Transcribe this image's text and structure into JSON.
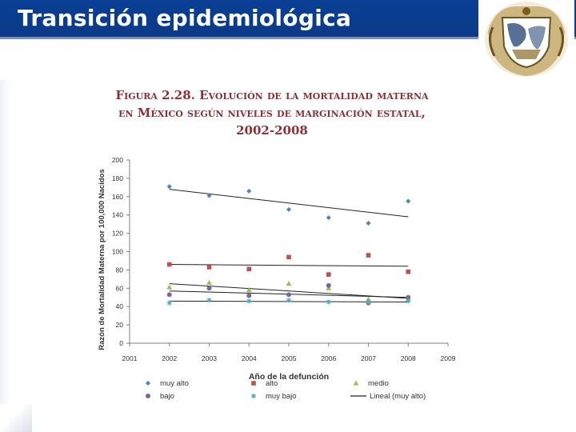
{
  "slide": {
    "title": "Transición epidemiológica",
    "figure_title": [
      "Figura 2.28. Evolución de la mortalidad materna",
      "en México según niveles de marginación estatal,",
      "2002-2008"
    ]
  },
  "chart_data": {
    "type": "scatter",
    "title": "Figura 2.28. Evolución de la mortalidad materna en México según niveles de marginación estatal, 2002-2008",
    "xlabel": "Año de la defunción",
    "ylabel": "Razón de Mortalidad Materna por 100,000 Nacidos",
    "xlim": [
      2001,
      2009
    ],
    "ylim": [
      0,
      200
    ],
    "xticks": [
      2001,
      2002,
      2003,
      2004,
      2005,
      2006,
      2007,
      2008,
      2009
    ],
    "yticks": [
      0,
      20,
      40,
      60,
      80,
      100,
      120,
      140,
      160,
      180,
      200
    ],
    "series": [
      {
        "name": "muy alto",
        "marker": "diamond",
        "color": "#4f81bd",
        "x": [
          2002,
          2003,
          2004,
          2005,
          2006,
          2007,
          2008
        ],
        "y": [
          171,
          161,
          166,
          146,
          137,
          131,
          155
        ]
      },
      {
        "name": "alto",
        "marker": "square",
        "color": "#c0504d",
        "x": [
          2002,
          2003,
          2004,
          2005,
          2006,
          2007,
          2008
        ],
        "y": [
          86,
          83,
          81,
          94,
          75,
          96,
          78
        ]
      },
      {
        "name": "medio",
        "marker": "triangle",
        "color": "#9bbb59",
        "x": [
          2002,
          2003,
          2004,
          2005,
          2006,
          2007,
          2008
        ],
        "y": [
          61,
          66,
          58,
          65,
          60,
          48,
          48
        ]
      },
      {
        "name": "bajo",
        "marker": "circle",
        "color": "#8064a2",
        "x": [
          2002,
          2003,
          2004,
          2005,
          2006,
          2007,
          2008
        ],
        "y": [
          53,
          60,
          52,
          53,
          63,
          44,
          50
        ]
      },
      {
        "name": "muy bajo",
        "marker": "star",
        "color": "#4bacc6",
        "x": [
          2002,
          2003,
          2004,
          2005,
          2006,
          2007,
          2008
        ],
        "y": [
          44,
          47,
          46,
          47,
          45,
          45,
          46
        ]
      }
    ],
    "trendlines": [
      {
        "series": "muy alto",
        "x": [
          2002,
          2008
        ],
        "y": [
          168,
          138
        ]
      },
      {
        "series": "alto",
        "x": [
          2002,
          2008
        ],
        "y": [
          86,
          84
        ]
      },
      {
        "series": "medio",
        "x": [
          2002,
          2008
        ],
        "y": [
          65,
          49
        ]
      },
      {
        "series": "bajo",
        "x": [
          2002,
          2008
        ],
        "y": [
          57,
          50
        ]
      },
      {
        "series": "muy bajo",
        "x": [
          2002,
          2008
        ],
        "y": [
          46,
          45
        ]
      }
    ],
    "legend": {
      "position": "bottom",
      "entries": [
        "muy alto",
        "alto",
        "medio",
        "bajo",
        "muy bajo",
        "Lineal (muy alto)"
      ]
    }
  }
}
